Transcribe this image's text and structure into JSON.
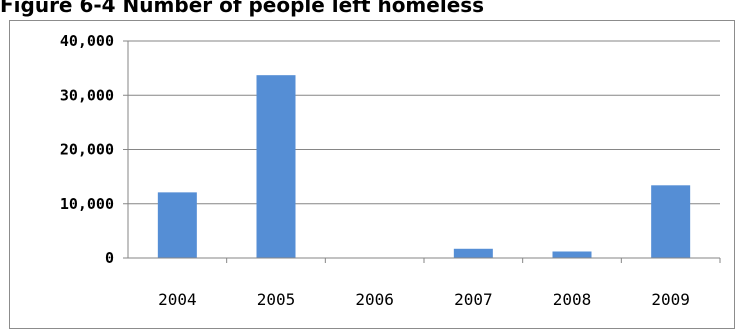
{
  "title": "Figure 6-4 Number of people left homeless",
  "chart_data": {
    "type": "bar",
    "title": "Figure 6-4 Number of people left homeless",
    "xlabel": "",
    "ylabel": "",
    "categories": [
      "2004",
      "2005",
      "2006",
      "2007",
      "2008",
      "2009"
    ],
    "values": [
      12100,
      33700,
      0,
      1700,
      1200,
      13400
    ],
    "ylim": [
      0,
      40000
    ],
    "yticks": [
      "0",
      "10,000",
      "20,000",
      "30,000",
      "40,000"
    ],
    "grid": true,
    "legend": "none",
    "bar_color": "#558ed5"
  }
}
